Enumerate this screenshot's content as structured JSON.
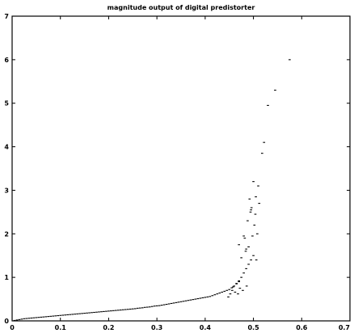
{
  "chart_data": {
    "type": "scatter",
    "title": "magnitude  output of digital predistorter",
    "xlabel": "",
    "ylabel": "",
    "xlim": [
      0,
      0.7
    ],
    "ylim": [
      0,
      7
    ],
    "grid": false,
    "legend": "none",
    "marker_color": "#000000",
    "x_ticks": [
      0,
      0.1,
      0.2,
      0.3,
      0.4,
      0.5,
      0.6,
      0.7
    ],
    "x_tick_labels": [
      "0",
      "0.1",
      "0.2",
      "0.3",
      "0.4",
      "0.5",
      "0.6",
      "0.7"
    ],
    "y_ticks": [
      0,
      1,
      2,
      3,
      4,
      5,
      6,
      7
    ],
    "y_tick_labels": [
      "0",
      "1",
      "2",
      "3",
      "4",
      "5",
      "6",
      "7"
    ],
    "series": [
      {
        "x": [
          0.005,
          0.01,
          0.015,
          0.02,
          0.025,
          0.03,
          0.035,
          0.04,
          0.045,
          0.05,
          0.055,
          0.06,
          0.065,
          0.07,
          0.075,
          0.08,
          0.085,
          0.09,
          0.095,
          0.1,
          0.105,
          0.11,
          0.115,
          0.12,
          0.125,
          0.13,
          0.135,
          0.14,
          0.145,
          0.15,
          0.155,
          0.16,
          0.165,
          0.17,
          0.175,
          0.18,
          0.185,
          0.19,
          0.195,
          0.2,
          0.205,
          0.21,
          0.215,
          0.22,
          0.225,
          0.23,
          0.235,
          0.24,
          0.245,
          0.25,
          0.255,
          0.26,
          0.265,
          0.27,
          0.275,
          0.28,
          0.285,
          0.29,
          0.295,
          0.3,
          0.305,
          0.31,
          0.315,
          0.32,
          0.325,
          0.33,
          0.335,
          0.34,
          0.345,
          0.35,
          0.355,
          0.36,
          0.365,
          0.37,
          0.375,
          0.38,
          0.385,
          0.39,
          0.395,
          0.4,
          0.405,
          0.41,
          0.415,
          0.42,
          0.425,
          0.43,
          0.435,
          0.44,
          0.445,
          0.45,
          0.455,
          0.46,
          0.465,
          0.47,
          0.475,
          0.48,
          0.485,
          0.49,
          0.495,
          0.5,
          0.448,
          0.452,
          0.456,
          0.458,
          0.462,
          0.465,
          0.468,
          0.47,
          0.472,
          0.475,
          0.478,
          0.48,
          0.482,
          0.484,
          0.486,
          0.488,
          0.49,
          0.492,
          0.494,
          0.496,
          0.498,
          0.5,
          0.502,
          0.504,
          0.506,
          0.508,
          0.51,
          0.512,
          0.518,
          0.522,
          0.53,
          0.545,
          0.575,
          0.47,
          0.485,
          0.495,
          0.505
        ],
        "y": [
          0.01,
          0.02,
          0.03,
          0.04,
          0.05,
          0.055,
          0.06,
          0.065,
          0.07,
          0.075,
          0.08,
          0.085,
          0.09,
          0.095,
          0.1,
          0.105,
          0.11,
          0.115,
          0.12,
          0.125,
          0.13,
          0.135,
          0.14,
          0.145,
          0.15,
          0.155,
          0.16,
          0.165,
          0.17,
          0.175,
          0.18,
          0.185,
          0.19,
          0.195,
          0.2,
          0.205,
          0.21,
          0.215,
          0.22,
          0.225,
          0.23,
          0.235,
          0.24,
          0.245,
          0.25,
          0.255,
          0.26,
          0.265,
          0.27,
          0.275,
          0.28,
          0.29,
          0.295,
          0.3,
          0.31,
          0.315,
          0.32,
          0.33,
          0.34,
          0.345,
          0.35,
          0.36,
          0.37,
          0.38,
          0.39,
          0.4,
          0.41,
          0.42,
          0.43,
          0.44,
          0.45,
          0.46,
          0.47,
          0.48,
          0.49,
          0.5,
          0.51,
          0.52,
          0.53,
          0.54,
          0.55,
          0.56,
          0.58,
          0.6,
          0.62,
          0.64,
          0.66,
          0.68,
          0.7,
          0.72,
          0.76,
          0.8,
          0.86,
          0.92,
          1.0,
          1.1,
          1.2,
          1.3,
          1.4,
          1.5,
          0.55,
          0.62,
          0.7,
          0.78,
          0.66,
          0.85,
          0.62,
          0.9,
          0.75,
          1.45,
          0.7,
          1.95,
          1.9,
          1.6,
          0.8,
          2.3,
          1.7,
          2.8,
          2.5,
          2.6,
          1.95,
          3.2,
          2.2,
          2.45,
          1.4,
          2.0,
          3.1,
          2.7,
          3.85,
          4.1,
          4.95,
          5.3,
          6.0,
          1.75,
          1.65,
          2.55,
          2.85
        ]
      }
    ]
  }
}
